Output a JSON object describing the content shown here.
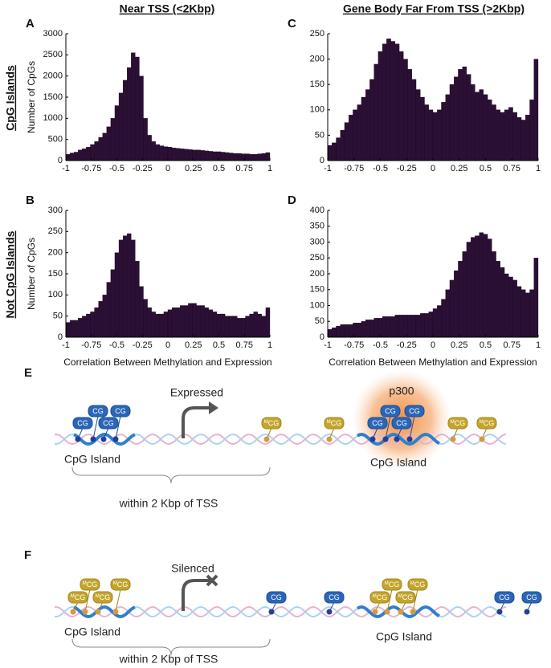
{
  "column_titles": [
    "Near TSS (<2Kbp)",
    "Gene Body Far From TSS (>2Kbp)"
  ],
  "row_titles": [
    "CpG Islands",
    "Not CpG Islands"
  ],
  "chart_data": [
    {
      "type": "histogram",
      "panel": "A",
      "ylabel": "Number of CpGs",
      "color": "#2b0f35",
      "bins": [
        -1,
        -0.96,
        -0.92,
        -0.88,
        -0.84,
        -0.8,
        -0.76,
        -0.72,
        -0.68,
        -0.64,
        -0.6,
        -0.56,
        -0.52,
        -0.48,
        -0.44,
        -0.4,
        -0.36,
        -0.32,
        -0.28,
        -0.24,
        -0.2,
        -0.16,
        -0.12,
        -0.08,
        -0.04,
        0,
        0.04,
        0.08,
        0.12,
        0.16,
        0.2,
        0.24,
        0.28,
        0.32,
        0.36,
        0.4,
        0.44,
        0.48,
        0.52,
        0.56,
        0.6,
        0.64,
        0.68,
        0.72,
        0.76,
        0.8,
        0.84,
        0.88,
        0.92,
        0.96,
        1
      ],
      "values": [
        150,
        180,
        200,
        250,
        280,
        320,
        380,
        450,
        550,
        650,
        800,
        1000,
        1300,
        1600,
        1900,
        2200,
        2550,
        2450,
        2000,
        1000,
        600,
        450,
        380,
        350,
        330,
        320,
        300,
        290,
        280,
        270,
        260,
        250,
        250,
        240,
        230,
        220,
        210,
        210,
        200,
        190,
        180,
        170,
        170,
        160,
        160,
        150,
        150,
        160,
        170,
        190
      ],
      "xlim": [
        -1,
        1
      ],
      "ylim": [
        0,
        3000
      ],
      "xticks": [
        -1,
        -0.75,
        -0.5,
        -0.25,
        0,
        0.25,
        0.5,
        0.75,
        1
      ],
      "yticks": [
        0,
        500,
        1000,
        1500,
        2000,
        2500,
        3000
      ]
    },
    {
      "type": "histogram",
      "panel": "C",
      "color": "#2b0f35",
      "bins": [
        -1,
        -0.96,
        -0.92,
        -0.88,
        -0.84,
        -0.8,
        -0.76,
        -0.72,
        -0.68,
        -0.64,
        -0.6,
        -0.56,
        -0.52,
        -0.48,
        -0.44,
        -0.4,
        -0.36,
        -0.32,
        -0.28,
        -0.24,
        -0.2,
        -0.16,
        -0.12,
        -0.08,
        -0.04,
        0,
        0.04,
        0.08,
        0.12,
        0.16,
        0.2,
        0.24,
        0.28,
        0.32,
        0.36,
        0.4,
        0.44,
        0.48,
        0.52,
        0.56,
        0.6,
        0.64,
        0.68,
        0.72,
        0.76,
        0.8,
        0.84,
        0.88,
        0.92,
        0.96,
        1
      ],
      "values": [
        30,
        35,
        45,
        60,
        75,
        90,
        100,
        110,
        125,
        140,
        160,
        190,
        215,
        230,
        240,
        235,
        230,
        215,
        200,
        180,
        160,
        140,
        125,
        110,
        100,
        95,
        100,
        115,
        130,
        150,
        165,
        180,
        185,
        170,
        150,
        135,
        140,
        130,
        120,
        110,
        100,
        95,
        100,
        105,
        95,
        85,
        80,
        90,
        120,
        200
      ],
      "xlim": [
        -1,
        1
      ],
      "ylim": [
        0,
        250
      ],
      "xticks": [
        -1,
        -0.75,
        -0.5,
        -0.25,
        0,
        0.25,
        0.5,
        0.75,
        1
      ],
      "yticks": [
        0,
        50,
        100,
        150,
        200,
        250
      ]
    },
    {
      "type": "histogram",
      "panel": "B",
      "ylabel": "Number of CpGs",
      "xlabel": "Correlation Between Methylation and Expression",
      "color": "#2b0f35",
      "bins": [
        -1,
        -0.96,
        -0.92,
        -0.88,
        -0.84,
        -0.8,
        -0.76,
        -0.72,
        -0.68,
        -0.64,
        -0.6,
        -0.56,
        -0.52,
        -0.48,
        -0.44,
        -0.4,
        -0.36,
        -0.32,
        -0.28,
        -0.24,
        -0.2,
        -0.16,
        -0.12,
        -0.08,
        -0.04,
        0,
        0.04,
        0.08,
        0.12,
        0.16,
        0.2,
        0.24,
        0.28,
        0.32,
        0.36,
        0.4,
        0.44,
        0.48,
        0.52,
        0.56,
        0.6,
        0.64,
        0.68,
        0.72,
        0.76,
        0.8,
        0.84,
        0.88,
        0.92,
        0.96,
        1
      ],
      "values": [
        35,
        40,
        40,
        45,
        50,
        55,
        60,
        70,
        85,
        100,
        130,
        160,
        200,
        230,
        240,
        245,
        230,
        180,
        120,
        90,
        70,
        60,
        55,
        55,
        60,
        65,
        70,
        70,
        75,
        75,
        80,
        80,
        75,
        75,
        70,
        65,
        60,
        55,
        55,
        50,
        50,
        50,
        45,
        45,
        50,
        55,
        60,
        55,
        50,
        70
      ],
      "xlim": [
        -1,
        1
      ],
      "ylim": [
        0,
        300
      ],
      "xticks": [
        -1,
        -0.75,
        -0.5,
        -0.25,
        0,
        0.25,
        0.5,
        0.75,
        1
      ],
      "yticks": [
        0,
        50,
        100,
        150,
        200,
        250,
        300
      ]
    },
    {
      "type": "histogram",
      "panel": "D",
      "xlabel": "Correlation Between Methylation and Expression",
      "color": "#2b0f35",
      "bins": [
        -1,
        -0.96,
        -0.92,
        -0.88,
        -0.84,
        -0.8,
        -0.76,
        -0.72,
        -0.68,
        -0.64,
        -0.6,
        -0.56,
        -0.52,
        -0.48,
        -0.44,
        -0.4,
        -0.36,
        -0.32,
        -0.28,
        -0.24,
        -0.2,
        -0.16,
        -0.12,
        -0.08,
        -0.04,
        0,
        0.04,
        0.08,
        0.12,
        0.16,
        0.2,
        0.24,
        0.28,
        0.32,
        0.36,
        0.4,
        0.44,
        0.48,
        0.52,
        0.56,
        0.6,
        0.64,
        0.68,
        0.72,
        0.76,
        0.8,
        0.84,
        0.88,
        0.92,
        0.96,
        1
      ],
      "values": [
        25,
        30,
        35,
        40,
        40,
        40,
        45,
        45,
        50,
        55,
        55,
        60,
        60,
        65,
        65,
        65,
        70,
        70,
        70,
        70,
        70,
        70,
        75,
        75,
        80,
        90,
        100,
        120,
        150,
        180,
        210,
        240,
        270,
        300,
        315,
        320,
        330,
        325,
        310,
        270,
        240,
        220,
        200,
        190,
        180,
        160,
        150,
        140,
        150,
        250
      ],
      "xlim": [
        -1,
        1
      ],
      "ylim": [
        0,
        400
      ],
      "xticks": [
        -1,
        -0.75,
        -0.5,
        -0.25,
        0,
        0.25,
        0.5,
        0.75,
        1
      ],
      "yticks": [
        0,
        50,
        100,
        150,
        200,
        250,
        300,
        350,
        400
      ]
    }
  ],
  "site_label": "CG",
  "methyl_mark": "M",
  "panel_E": {
    "label": "E",
    "status": "Expressed",
    "cofactor": "p300",
    "island_labels": [
      "CpG Island",
      "CpG Island"
    ],
    "range_label": "within 2 Kbp of TSS"
  },
  "panel_F": {
    "label": "F",
    "status": "Silenced",
    "island_labels": [
      "CpG Island",
      "CpG Island"
    ],
    "range_label": "within 2 Kbp of TSS"
  }
}
